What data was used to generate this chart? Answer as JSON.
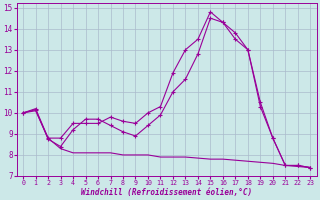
{
  "xlabel": "Windchill (Refroidissement éolien,°C)",
  "background_color": "#cce8e8",
  "line_color": "#990099",
  "grid_color": "#aabbcc",
  "xlim": [
    -0.5,
    23.5
  ],
  "ylim": [
    7,
    15.2
  ],
  "xticks": [
    0,
    1,
    2,
    3,
    4,
    5,
    6,
    7,
    8,
    9,
    10,
    11,
    12,
    13,
    14,
    15,
    16,
    17,
    18,
    19,
    20,
    21,
    22,
    23
  ],
  "yticks": [
    7,
    8,
    9,
    10,
    11,
    12,
    13,
    14,
    15
  ],
  "series": [
    {
      "x": [
        0,
        1,
        2,
        3,
        4,
        5,
        6,
        7,
        8,
        9,
        10,
        11,
        12,
        13,
        14,
        15,
        16,
        17,
        18,
        19,
        20,
        21,
        22,
        23
      ],
      "y": [
        10.0,
        10.2,
        8.8,
        8.8,
        9.5,
        9.5,
        9.5,
        9.8,
        9.6,
        9.5,
        10.0,
        10.3,
        11.9,
        13.0,
        13.5,
        14.8,
        14.3,
        13.8,
        13.0,
        10.5,
        8.8,
        7.5,
        7.5,
        7.4
      ],
      "marker": true
    },
    {
      "x": [
        0,
        1,
        2,
        3,
        4,
        5,
        6,
        7,
        8,
        9,
        10,
        11,
        12,
        13,
        14,
        15,
        16,
        17,
        18,
        19,
        20,
        21,
        22,
        23
      ],
      "y": [
        10.0,
        10.15,
        8.75,
        8.4,
        9.2,
        9.7,
        9.7,
        9.4,
        9.1,
        8.9,
        9.4,
        9.9,
        11.0,
        11.6,
        12.8,
        14.5,
        14.3,
        13.5,
        13.0,
        10.3,
        8.8,
        7.5,
        7.5,
        7.4
      ],
      "marker": true
    },
    {
      "x": [
        0,
        1,
        2,
        3,
        4,
        5,
        6,
        7,
        8,
        9,
        10,
        11,
        12,
        13,
        14,
        15,
        16,
        17,
        18,
        19,
        20,
        21,
        22,
        23
      ],
      "y": [
        10.0,
        10.1,
        8.8,
        8.3,
        8.1,
        8.1,
        8.1,
        8.1,
        8.0,
        8.0,
        8.0,
        7.9,
        7.9,
        7.9,
        7.85,
        7.8,
        7.8,
        7.75,
        7.7,
        7.65,
        7.6,
        7.5,
        7.45,
        7.4
      ],
      "marker": false
    }
  ]
}
